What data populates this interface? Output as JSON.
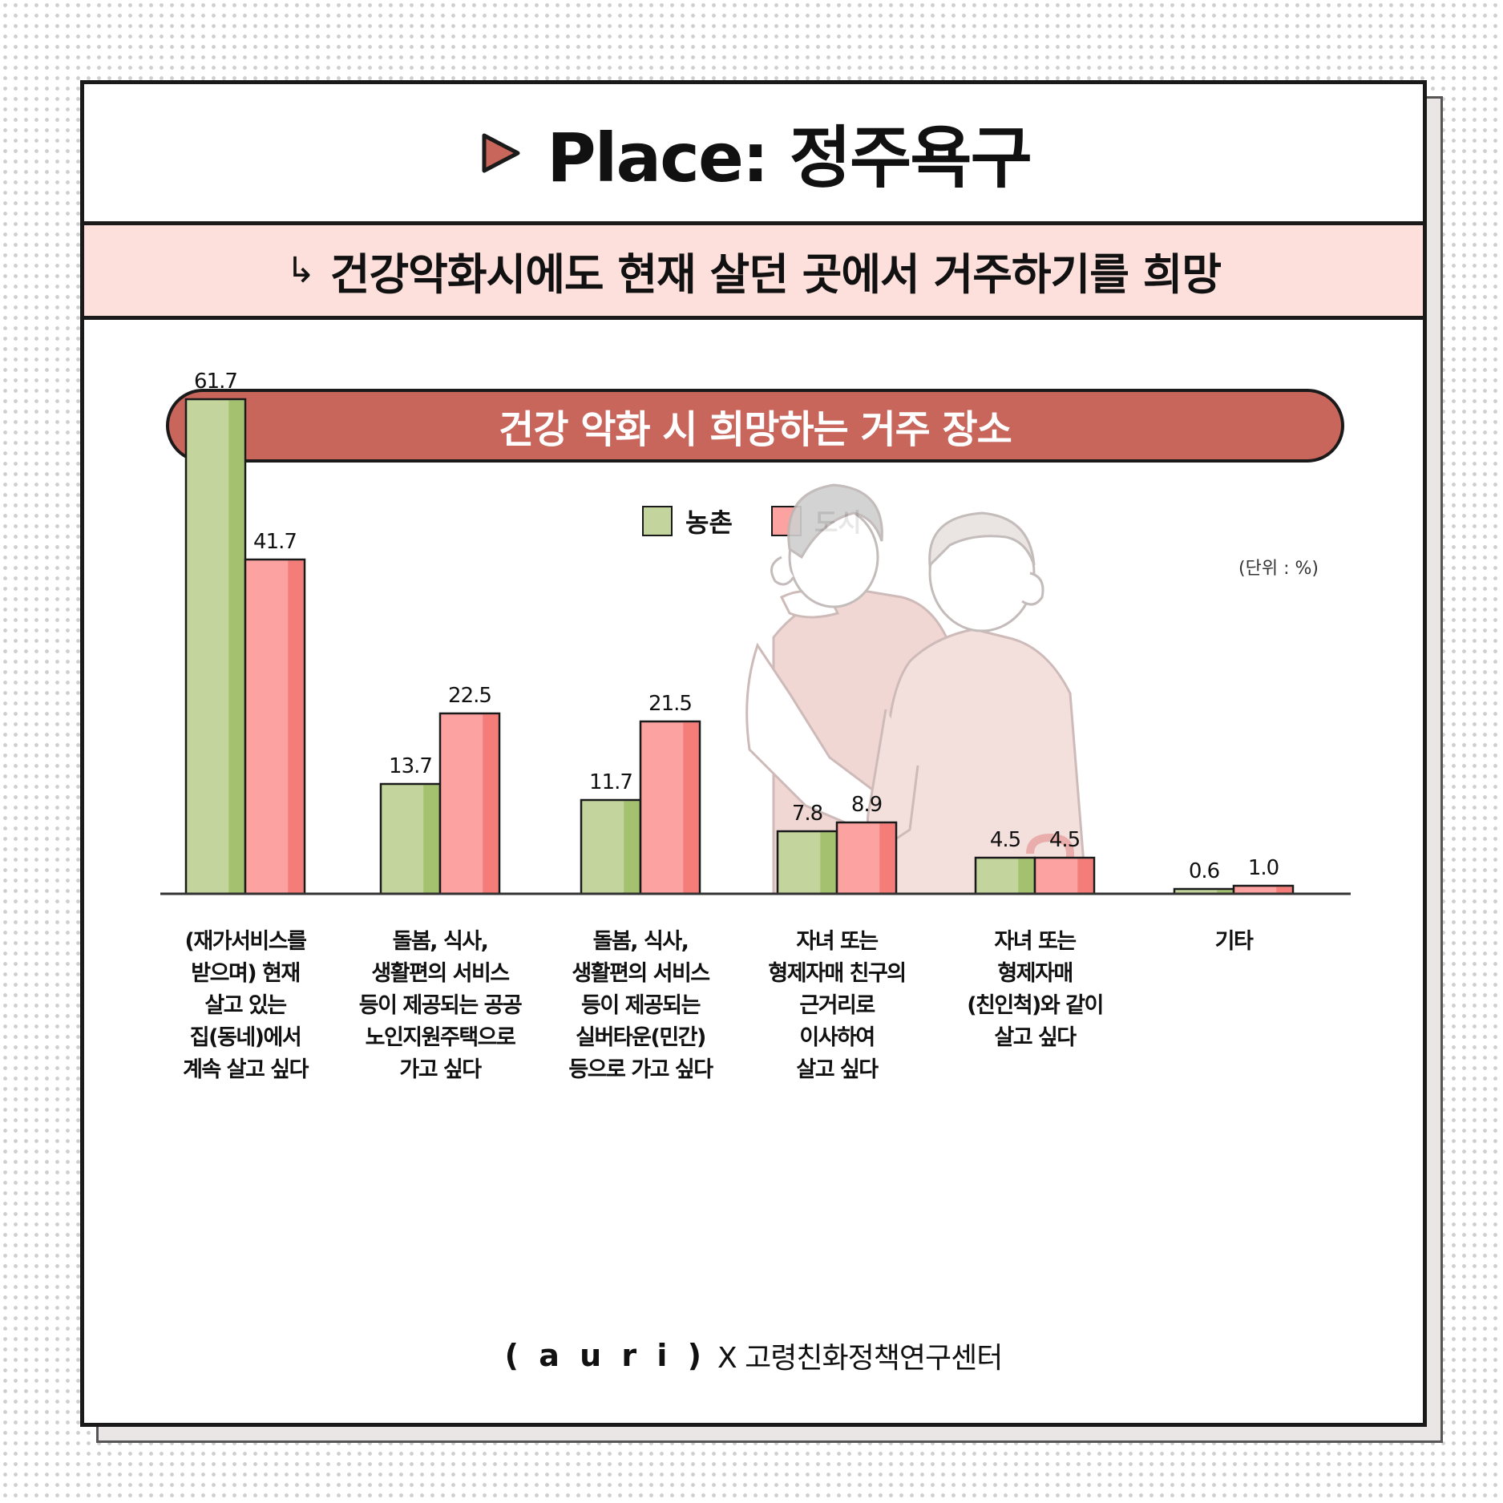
{
  "header": {
    "title": "Place: 정주욕구",
    "subtitle": "건강악화시에도 현재 살던 곳에서 거주하기를 희망",
    "subtitle_arrow": "↳"
  },
  "section_title": "건강 악화 시 희망하는 거주 장소",
  "unit_label": "(단위 : %)",
  "colors": {
    "rural": "#c3d59c",
    "rural_shade": "#a3c16e",
    "urban": "#fca3a1",
    "urban_shade": "#f47d7a",
    "accent": "#c8665c"
  },
  "chart_data": {
    "type": "bar",
    "categories": [
      "(재가서비스를\n받으며) 현재\n살고 있는\n집(동네)에서\n계속 살고 싶다",
      "돌봄, 식사,\n생활편의 서비스\n등이 제공되는 공공\n노인지원주택으로\n가고 싶다",
      "돌봄, 식사,\n생활편의 서비스\n등이 제공되는\n실버타운(민간)\n등으로 가고 싶다",
      "자녀 또는\n형제자매 친구의\n근거리로\n이사하여\n살고 싶다",
      "자녀 또는\n형제자매\n(친인척)와 같이\n살고 싶다",
      "기타"
    ],
    "series": [
      {
        "name": "농촌",
        "values": [
          61.7,
          13.7,
          11.7,
          7.8,
          4.5,
          0.6
        ]
      },
      {
        "name": "도시",
        "values": [
          41.7,
          22.5,
          21.5,
          8.9,
          4.5,
          1.0
        ]
      }
    ],
    "value_labels": [
      [
        "61.7",
        "13.7",
        "11.7",
        "7.8",
        "4.5",
        "0.6"
      ],
      [
        "41.7",
        "22.5",
        "21.5",
        "8.9",
        "4.5",
        "1.0"
      ]
    ],
    "ylim": [
      0,
      70
    ]
  },
  "footer": {
    "logo": "( a u r i )",
    "text": "X 고령친화정책연구센터"
  },
  "icons": {
    "title_icon": "play-triangle-icon",
    "illustration": "caregiver-elderly-illustration"
  }
}
